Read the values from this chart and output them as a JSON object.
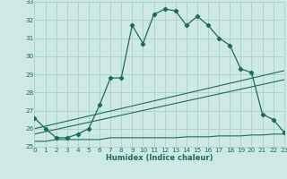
{
  "xlabel": "Humidex (Indice chaleur)",
  "background_color": "#cde8e5",
  "grid_color": "#aacfcc",
  "line_color": "#1a6b5a",
  "xlim": [
    0,
    23
  ],
  "ylim": [
    25,
    33
  ],
  "yticks": [
    25,
    26,
    27,
    28,
    29,
    30,
    31,
    32,
    33
  ],
  "xticks": [
    0,
    1,
    2,
    3,
    4,
    5,
    6,
    7,
    8,
    9,
    10,
    11,
    12,
    13,
    14,
    15,
    16,
    17,
    18,
    19,
    20,
    21,
    22,
    23
  ],
  "line1_x": [
    0,
    1,
    2,
    3,
    4,
    5,
    6,
    7,
    8,
    9,
    10,
    11,
    12,
    13,
    14,
    15,
    16,
    17,
    18,
    19,
    20,
    21,
    22,
    23
  ],
  "line1_y": [
    26.6,
    26.0,
    25.5,
    25.5,
    25.7,
    26.0,
    27.3,
    28.8,
    28.8,
    31.7,
    30.7,
    32.3,
    32.6,
    32.5,
    31.7,
    32.2,
    31.7,
    31.0,
    30.6,
    29.3,
    29.1,
    26.8,
    26.5,
    25.8
  ],
  "line2_x": [
    0,
    23
  ],
  "line2_y": [
    26.0,
    29.2
  ],
  "line3_x": [
    0,
    23
  ],
  "line3_y": [
    25.7,
    28.7
  ],
  "line4_x": [
    0,
    1,
    2,
    3,
    4,
    5,
    6,
    7,
    8,
    9,
    10,
    11,
    12,
    13,
    14,
    15,
    16,
    17,
    18,
    19,
    20,
    21,
    22,
    23
  ],
  "line4_y": [
    25.3,
    25.3,
    25.4,
    25.4,
    25.4,
    25.4,
    25.4,
    25.5,
    25.5,
    25.5,
    25.5,
    25.5,
    25.5,
    25.5,
    25.55,
    25.55,
    25.55,
    25.6,
    25.6,
    25.6,
    25.65,
    25.65,
    25.7,
    25.7
  ]
}
